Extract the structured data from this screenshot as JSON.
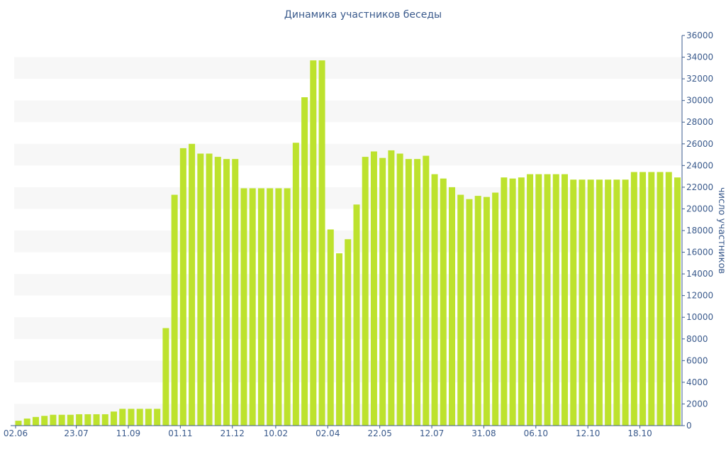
{
  "chart_data": {
    "type": "bar",
    "title": "Динамика участников беседы",
    "xlabel": "",
    "ylabel": "число участников",
    "ylim": [
      0,
      36000
    ],
    "yticks": [
      0,
      2000,
      4000,
      6000,
      8000,
      10000,
      12000,
      14000,
      16000,
      18000,
      20000,
      22000,
      24000,
      26000,
      28000,
      30000,
      32000,
      34000,
      36000
    ],
    "y_axis_side": "right",
    "grid": "alternating horizontal bands",
    "bar_color": "#bde22d",
    "band_color": "#f7f7f7",
    "text_color": "#3a5a8c",
    "x_tick_labels": [
      {
        "index": 0,
        "label": "02.06"
      },
      {
        "index": 7,
        "label": "23.07"
      },
      {
        "index": 13,
        "label": "11.09"
      },
      {
        "index": 19,
        "label": "01.11"
      },
      {
        "index": 25,
        "label": "21.12"
      },
      {
        "index": 30,
        "label": "10.02"
      },
      {
        "index": 36,
        "label": "02.04"
      },
      {
        "index": 42,
        "label": "22.05"
      },
      {
        "index": 48,
        "label": "12.07"
      },
      {
        "index": 54,
        "label": "31.08"
      },
      {
        "index": 60,
        "label": "06.10"
      },
      {
        "index": 66,
        "label": "12.10"
      },
      {
        "index": 72,
        "label": "18.10"
      }
    ],
    "values": [
      450,
      650,
      800,
      900,
      1000,
      1000,
      1000,
      1050,
      1050,
      1050,
      1050,
      1300,
      1550,
      1550,
      1550,
      1550,
      1550,
      9000,
      21300,
      25600,
      26000,
      25100,
      25100,
      24800,
      24600,
      24600,
      21900,
      21900,
      21900,
      21900,
      21900,
      21900,
      26100,
      30300,
      33700,
      33700,
      18100,
      15900,
      17200,
      20400,
      24800,
      25300,
      24700,
      25400,
      25100,
      24600,
      24600,
      24900,
      23200,
      22800,
      22000,
      21300,
      20900,
      21200,
      21100,
      21500,
      22900,
      22800,
      22900,
      23200,
      23200,
      23200,
      23200,
      23200,
      22700,
      22700,
      22700,
      22700,
      22700,
      22700,
      22700,
      23400,
      23400,
      23400,
      23400,
      23400,
      22900
    ]
  }
}
